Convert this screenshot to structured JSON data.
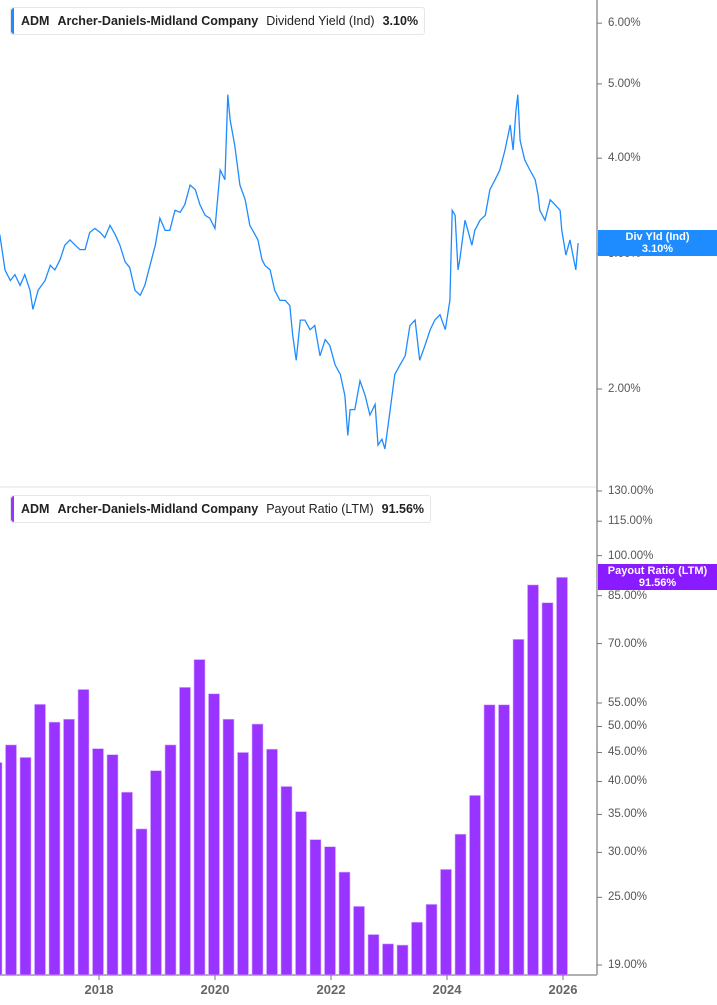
{
  "colors": {
    "dividend_yield": "#1e8cff",
    "payout_ratio": "#9933ff",
    "axis": "#b0b0b0"
  },
  "top_legend": {
    "ticker": "ADM",
    "company": "Archer-Daniels-Midland Company",
    "metric": "Dividend Yield (Ind)",
    "value": "3.10%"
  },
  "bottom_legend": {
    "ticker": "ADM",
    "company": "Archer-Daniels-Midland Company",
    "metric": "Payout Ratio (LTM)",
    "value": "91.56%"
  },
  "top_flag": {
    "label": "Div Yld (Ind)",
    "value": "3.10%"
  },
  "bottom_flag": {
    "label": "Payout Ratio (LTM)",
    "value": "91.56%"
  },
  "chart_data": [
    {
      "type": "line",
      "series": [
        {
          "name": "Dividend Yield (Ind)"
        }
      ],
      "y_scale": "log",
      "y_ticks": [
        "6.00%",
        "5.00%",
        "4.00%",
        "3.00%",
        "2.00%"
      ],
      "y_tick_values": [
        6,
        5,
        4,
        3,
        2
      ],
      "x_unit": "year",
      "points": [
        [
          2016.29,
          3.18
        ],
        [
          2016.38,
          2.86
        ],
        [
          2016.47,
          2.77
        ],
        [
          2016.55,
          2.82
        ],
        [
          2016.64,
          2.73
        ],
        [
          2016.72,
          2.82
        ],
        [
          2016.81,
          2.69
        ],
        [
          2016.86,
          2.54
        ],
        [
          2016.95,
          2.69
        ],
        [
          2017.07,
          2.77
        ],
        [
          2017.16,
          2.9
        ],
        [
          2017.24,
          2.86
        ],
        [
          2017.33,
          2.95
        ],
        [
          2017.41,
          3.08
        ],
        [
          2017.5,
          3.13
        ],
        [
          2017.59,
          3.08
        ],
        [
          2017.67,
          3.04
        ],
        [
          2017.76,
          3.04
        ],
        [
          2017.84,
          3.2
        ],
        [
          2017.93,
          3.24
        ],
        [
          2018.02,
          3.2
        ],
        [
          2018.1,
          3.15
        ],
        [
          2018.19,
          3.27
        ],
        [
          2018.28,
          3.18
        ],
        [
          2018.36,
          3.08
        ],
        [
          2018.45,
          2.93
        ],
        [
          2018.53,
          2.88
        ],
        [
          2018.62,
          2.69
        ],
        [
          2018.71,
          2.65
        ],
        [
          2018.79,
          2.73
        ],
        [
          2018.88,
          2.9
        ],
        [
          2018.97,
          3.08
        ],
        [
          2019.05,
          3.34
        ],
        [
          2019.14,
          3.22
        ],
        [
          2019.22,
          3.22
        ],
        [
          2019.31,
          3.42
        ],
        [
          2019.4,
          3.4
        ],
        [
          2019.48,
          3.48
        ],
        [
          2019.57,
          3.69
        ],
        [
          2019.66,
          3.64
        ],
        [
          2019.74,
          3.48
        ],
        [
          2019.83,
          3.37
        ],
        [
          2019.91,
          3.34
        ],
        [
          2020.0,
          3.24
        ],
        [
          2020.09,
          3.86
        ],
        [
          2020.17,
          3.75
        ],
        [
          2020.22,
          4.84
        ],
        [
          2020.26,
          4.49
        ],
        [
          2020.34,
          4.16
        ],
        [
          2020.43,
          3.69
        ],
        [
          2020.52,
          3.53
        ],
        [
          2020.6,
          3.27
        ],
        [
          2020.69,
          3.18
        ],
        [
          2020.74,
          3.13
        ],
        [
          2020.81,
          2.95
        ],
        [
          2020.86,
          2.9
        ],
        [
          2020.95,
          2.86
        ],
        [
          2021.03,
          2.69
        ],
        [
          2021.12,
          2.61
        ],
        [
          2021.21,
          2.61
        ],
        [
          2021.29,
          2.57
        ],
        [
          2021.34,
          2.35
        ],
        [
          2021.4,
          2.18
        ],
        [
          2021.47,
          2.46
        ],
        [
          2021.55,
          2.46
        ],
        [
          2021.64,
          2.39
        ],
        [
          2021.72,
          2.42
        ],
        [
          2021.81,
          2.21
        ],
        [
          2021.9,
          2.32
        ],
        [
          2021.98,
          2.28
        ],
        [
          2022.07,
          2.15
        ],
        [
          2022.16,
          2.09
        ],
        [
          2022.24,
          1.96
        ],
        [
          2022.29,
          1.74
        ],
        [
          2022.33,
          1.88
        ],
        [
          2022.41,
          1.88
        ],
        [
          2022.5,
          2.05
        ],
        [
          2022.59,
          1.96
        ],
        [
          2022.67,
          1.85
        ],
        [
          2022.76,
          1.91
        ],
        [
          2022.81,
          1.69
        ],
        [
          2022.88,
          1.72
        ],
        [
          2022.93,
          1.67
        ],
        [
          2023.02,
          1.88
        ],
        [
          2023.1,
          2.09
        ],
        [
          2023.19,
          2.15
        ],
        [
          2023.28,
          2.21
        ],
        [
          2023.36,
          2.42
        ],
        [
          2023.45,
          2.46
        ],
        [
          2023.53,
          2.18
        ],
        [
          2023.62,
          2.28
        ],
        [
          2023.71,
          2.39
        ],
        [
          2023.79,
          2.46
        ],
        [
          2023.88,
          2.5
        ],
        [
          2023.97,
          2.39
        ],
        [
          2024.05,
          2.61
        ],
        [
          2024.09,
          3.42
        ],
        [
          2024.14,
          3.37
        ],
        [
          2024.19,
          2.86
        ],
        [
          2024.22,
          2.95
        ],
        [
          2024.31,
          3.32
        ],
        [
          2024.36,
          3.22
        ],
        [
          2024.43,
          3.08
        ],
        [
          2024.48,
          3.22
        ],
        [
          2024.57,
          3.32
        ],
        [
          2024.66,
          3.37
        ],
        [
          2024.74,
          3.64
        ],
        [
          2024.83,
          3.75
        ],
        [
          2024.91,
          3.86
        ],
        [
          2025.0,
          4.1
        ],
        [
          2025.09,
          4.42
        ],
        [
          2025.14,
          4.1
        ],
        [
          2025.19,
          4.62
        ],
        [
          2025.22,
          4.84
        ],
        [
          2025.26,
          4.22
        ],
        [
          2025.34,
          3.98
        ],
        [
          2025.43,
          3.86
        ],
        [
          2025.52,
          3.75
        ],
        [
          2025.57,
          3.58
        ],
        [
          2025.6,
          3.42
        ],
        [
          2025.69,
          3.32
        ],
        [
          2025.78,
          3.53
        ],
        [
          2025.86,
          3.48
        ],
        [
          2025.95,
          3.42
        ],
        [
          2025.98,
          3.22
        ],
        [
          2026.05,
          2.99
        ],
        [
          2026.12,
          3.13
        ],
        [
          2026.17,
          2.99
        ],
        [
          2026.22,
          2.86
        ],
        [
          2026.26,
          3.1
        ]
      ]
    },
    {
      "type": "bar",
      "series": [
        {
          "name": "Payout Ratio (LTM)"
        }
      ],
      "y_scale": "log",
      "y_ticks": [
        "130.00%",
        "115.00%",
        "100.00%",
        "85.00%",
        "70.00%",
        "55.00%",
        "50.00%",
        "45.00%",
        "40.00%",
        "35.00%",
        "30.00%",
        "25.00%",
        "19.00%"
      ],
      "y_tick_values": [
        130,
        115,
        100,
        85,
        70,
        55,
        50,
        45,
        40,
        35,
        30,
        25,
        19
      ],
      "x_ticks": [
        "2018",
        "2020",
        "2022",
        "2024",
        "2026"
      ],
      "x_tick_values": [
        2018,
        2020,
        2022,
        2024,
        2026
      ],
      "categories": [
        "2016 Q2",
        "2016 Q3",
        "2016 Q4",
        "2017 Q1",
        "2017 Q2",
        "2017 Q3",
        "2017 Q4",
        "2018 Q1",
        "2018 Q2",
        "2018 Q3",
        "2018 Q4",
        "2019 Q1",
        "2019 Q2",
        "2019 Q3",
        "2019 Q4",
        "2020 Q1",
        "2020 Q2",
        "2020 Q3",
        "2020 Q4",
        "2021 Q1",
        "2021 Q2",
        "2021 Q3",
        "2021 Q4",
        "2022 Q1",
        "2022 Q2",
        "2022 Q3",
        "2022 Q4",
        "2023 Q1",
        "2023 Q2",
        "2023 Q3",
        "2023 Q4",
        "2024 Q1",
        "2024 Q2",
        "2024 Q3",
        "2024 Q4",
        "2025 Q1",
        "2025 Q2",
        "2025 Q3",
        "2025 Q4",
        "2026 Q1"
      ],
      "values": [
        43.2,
        46.4,
        44.1,
        54.7,
        50.9,
        51.5,
        58.1,
        45.7,
        44.6,
        38.3,
        33.0,
        41.8,
        46.4,
        58.6,
        65.6,
        57.1,
        51.5,
        45.0,
        50.5,
        45.6,
        39.2,
        35.4,
        31.6,
        30.7,
        27.7,
        24.1,
        21.5,
        20.7,
        20.6,
        22.6,
        24.3,
        28.0,
        32.3,
        37.8,
        54.6,
        54.6,
        71.2,
        88.8,
        82.6,
        91.56
      ]
    }
  ]
}
